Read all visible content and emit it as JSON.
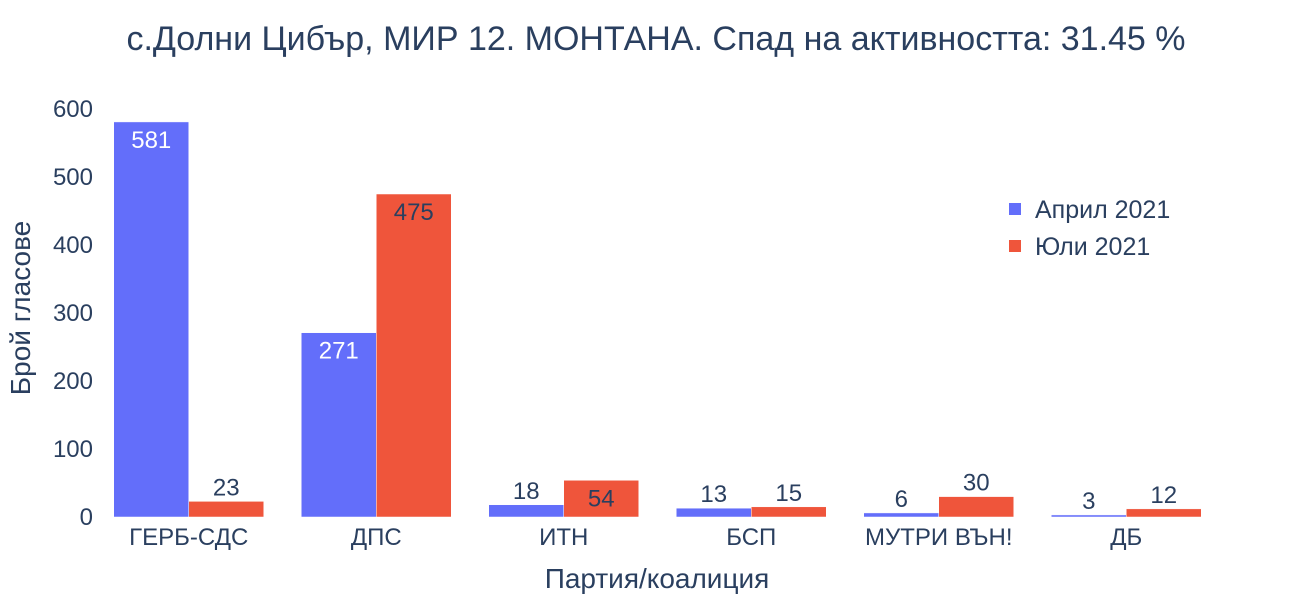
{
  "chart_data": {
    "type": "bar",
    "title": "с.Долни Цибър, МИР 12. МОНТАНА. Спад на активността: 31.45 %",
    "xlabel": "Партия/коалиция",
    "ylabel": "Брой гласове",
    "categories": [
      "ГЕРБ-СДС",
      "ДПС",
      "ИТН",
      "БСП",
      "МУТРИ ВЪН!",
      "ДБ"
    ],
    "series": [
      {
        "name": "Април 2021",
        "color": "#636efa",
        "values": [
          581,
          271,
          18,
          13,
          6,
          3
        ]
      },
      {
        "name": "Юли 2021",
        "color": "#ef553b",
        "values": [
          23,
          475,
          54,
          15,
          30,
          12
        ]
      }
    ],
    "ylim": [
      0,
      600
    ],
    "yticks": [
      0,
      100,
      200,
      300,
      400,
      500,
      600
    ],
    "grid": false,
    "legend_position": "top-right"
  }
}
